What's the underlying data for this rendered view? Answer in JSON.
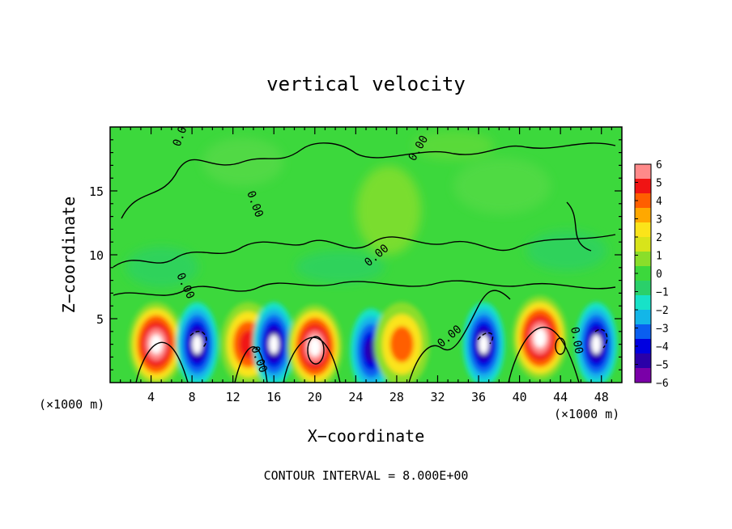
{
  "chart_data": {
    "type": "heatmap",
    "title": "vertical velocity",
    "xlabel": "X−coordinate",
    "ylabel": "Z−coordinate",
    "x_unit": "(×1000 m)",
    "x_unit_right": "(×1000 m)",
    "xlim": [
      0,
      50
    ],
    "ylim": [
      0,
      20
    ],
    "x_ticks": [
      4,
      8,
      12,
      16,
      20,
      24,
      28,
      32,
      36,
      40,
      44,
      48
    ],
    "y_ticks": [
      5,
      10,
      15
    ],
    "footer": "CONTOUR INTERVAL = 8.000E+00",
    "colorbar": {
      "labels": [
        "6",
        "5",
        "4",
        "3",
        "2",
        "1",
        "0",
        "−1",
        "−2",
        "−3",
        "−4",
        "−5",
        "−6"
      ],
      "range": [
        -6,
        6
      ],
      "colors": [
        "#7a00a8",
        "#2a00a8",
        "#0000e0",
        "#0a5ff0",
        "#13b6e8",
        "#17e2c8",
        "#2ad06a",
        "#3cd83c",
        "#8ade2a",
        "#d8e41a",
        "#fbe41a",
        "#ffa800",
        "#ff5e00",
        "#f01414",
        "#ff8a8a"
      ]
    },
    "contour_labels": [
      "0.00",
      "0.00",
      "0.00",
      "0.00",
      "0.00",
      "0.00",
      "0.00",
      "0.00"
    ],
    "features": [
      {
        "kind": "updraft",
        "x": 4.5,
        "z": 3,
        "max": 6
      },
      {
        "kind": "downdraft",
        "x": 8.5,
        "z": 3,
        "min": -6
      },
      {
        "kind": "updraft",
        "x": 13.5,
        "z": 3,
        "max": 4
      },
      {
        "kind": "downdraft",
        "x": 16,
        "z": 3,
        "min": -6
      },
      {
        "kind": "updraft",
        "x": 20,
        "z": 2.8,
        "max": 6
      },
      {
        "kind": "downdraft",
        "x": 25.5,
        "z": 2.5,
        "min": -5
      },
      {
        "kind": "updraft",
        "x": 28.5,
        "z": 3,
        "max": 3
      },
      {
        "kind": "downdraft",
        "x": 36.5,
        "z": 3,
        "min": -6
      },
      {
        "kind": "updraft",
        "x": 42,
        "z": 3.5,
        "max": 6
      },
      {
        "kind": "downdraft",
        "x": 47.5,
        "z": 3,
        "min": -6
      }
    ]
  }
}
